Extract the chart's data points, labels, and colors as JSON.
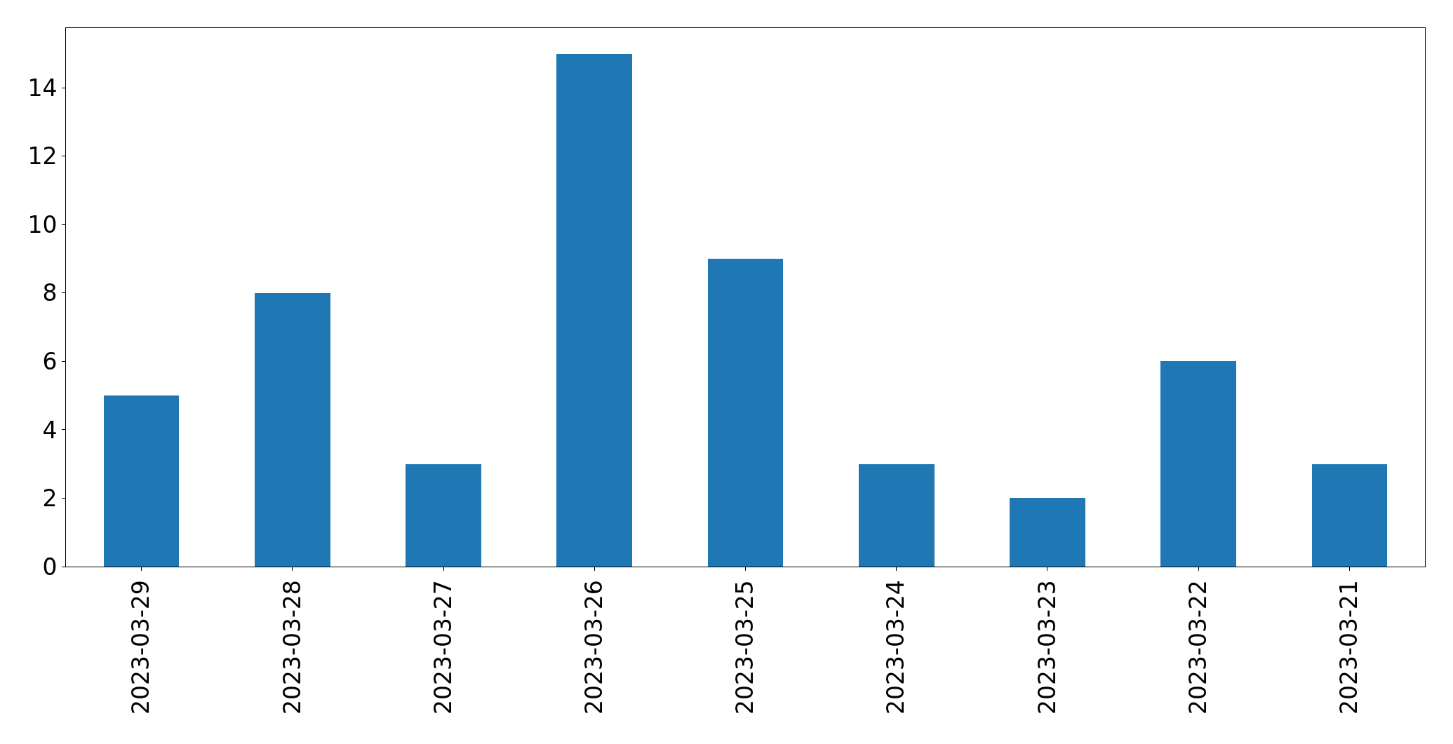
{
  "chart_data": {
    "type": "bar",
    "categories": [
      "2023-03-29",
      "2023-03-28",
      "2023-03-27",
      "2023-03-26",
      "2023-03-25",
      "2023-03-24",
      "2023-03-23",
      "2023-03-22",
      "2023-03-21"
    ],
    "values": [
      5,
      8,
      3,
      15,
      9,
      3,
      2,
      6,
      3
    ],
    "color": "#1f77b4",
    "ylim": [
      0,
      15.75
    ],
    "yticks": [
      0,
      2,
      4,
      6,
      8,
      10,
      12,
      14
    ]
  }
}
